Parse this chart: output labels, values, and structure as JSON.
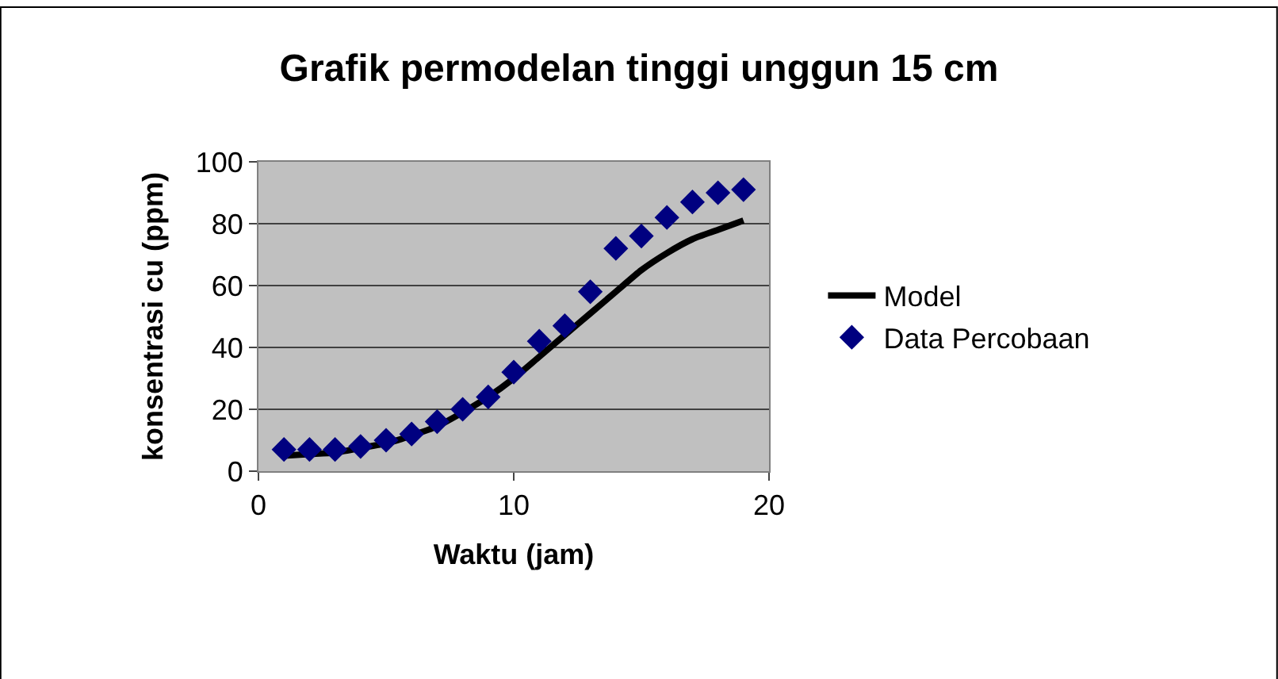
{
  "chart_data": {
    "type": "scatter",
    "title": "Grafik permodelan tinggi unggun 15 cm",
    "xlabel": "Waktu (jam)",
    "ylabel": "konsentrasi cu (ppm)",
    "x": [
      1,
      2,
      3,
      4,
      5,
      6,
      7,
      8,
      9,
      10,
      11,
      12,
      13,
      14,
      15,
      16,
      17,
      18,
      19
    ],
    "series": [
      {
        "name": "Model",
        "type": "line",
        "color": "#000000",
        "marker": "none",
        "line_style": "solid",
        "values": [
          5,
          5.5,
          6,
          7.5,
          9,
          11.5,
          14.5,
          19,
          24,
          30,
          37,
          44,
          51,
          58,
          65,
          70.5,
          75,
          78,
          81
        ]
      },
      {
        "name": "Data Percobaan",
        "color": "#000080",
        "marker": "diamond",
        "values": [
          7,
          7,
          7,
          8,
          10,
          12,
          16,
          20,
          24,
          32,
          42,
          47,
          58,
          72,
          76,
          82,
          87,
          90,
          91
        ]
      }
    ],
    "xlim": [
      0,
      20
    ],
    "xticks": [
      0,
      10,
      20
    ],
    "ylim": [
      0,
      100
    ],
    "yticks": [
      0,
      20,
      40,
      60,
      80,
      100
    ],
    "grid": "y",
    "legend": "right"
  }
}
